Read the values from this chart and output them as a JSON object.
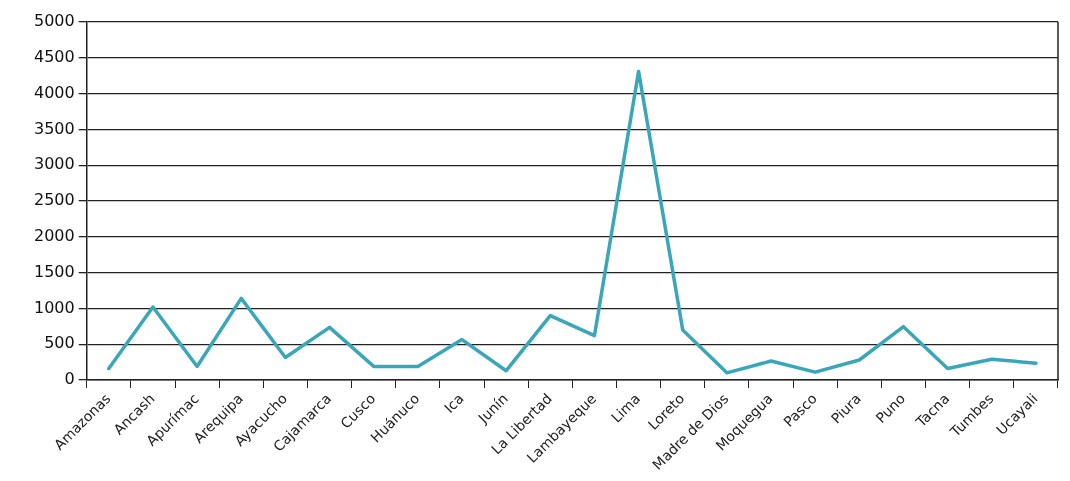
{
  "chart_data": {
    "type": "line",
    "categories": [
      "Amazonas",
      "Ancash",
      "Apurímac",
      "Arequipa",
      "Ayacucho",
      "Cajamarca",
      "Cusco",
      "Huánuco",
      "Ica",
      "Junín",
      "La Libertad",
      "Lambayeque",
      "Lima",
      "Loreto",
      "Madre de Dios",
      "Moquegua",
      "Pasco",
      "Piura",
      "Puno",
      "Tacna",
      "Tumbes",
      "Ucayali"
    ],
    "series": [
      {
        "color": "#3aa6b9",
        "values": [
          160,
          1020,
          190,
          1140,
          315,
          735,
          190,
          190,
          565,
          130,
          900,
          620,
          4310,
          700,
          100,
          265,
          110,
          280,
          745,
          160,
          290,
          235
        ]
      }
    ],
    "ylim": [
      0,
      5000
    ],
    "yticks": [
      0,
      500,
      1000,
      1500,
      2000,
      2500,
      3000,
      3500,
      4000,
      4500,
      5000
    ],
    "grid": "y",
    "marker": "none",
    "line_style": "solid"
  }
}
